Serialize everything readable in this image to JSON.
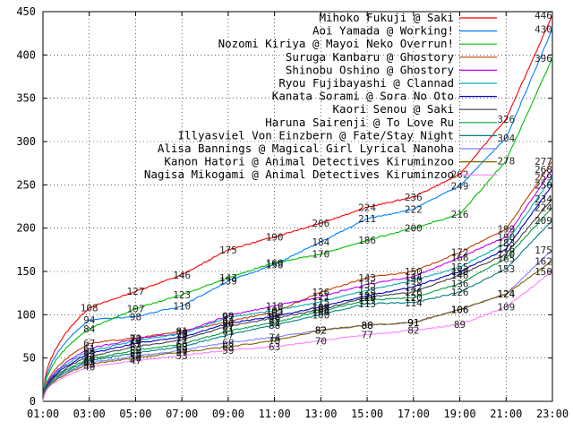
{
  "chart_data": {
    "type": "line",
    "title": "",
    "xlabel": "",
    "ylabel": "",
    "ylim": [
      0,
      450
    ],
    "y_ticks": [
      0,
      50,
      100,
      150,
      200,
      250,
      300,
      350,
      400,
      450
    ],
    "x_ticks": [
      "01:00",
      "03:00",
      "05:00",
      "07:00",
      "09:00",
      "11:00",
      "13:00",
      "15:00",
      "17:00",
      "19:00",
      "21:00",
      "23:00"
    ],
    "xlim": [
      "01:00",
      "23:00"
    ],
    "grid": true,
    "legend_position": "top-right",
    "x_hours": [
      1,
      3,
      5,
      7,
      9,
      11,
      13,
      15,
      17,
      19,
      21,
      23
    ],
    "series": [
      {
        "name": "Mihoko Fukuji @ Saki",
        "color": "#ff0000",
        "values": [
          0,
          108,
          127,
          146,
          175,
          190,
          206,
          224,
          236,
          262,
          326,
          446
        ]
      },
      {
        "name": "Aoi Yamada @ Working!",
        "color": "#0080ff",
        "values": [
          0,
          94,
          98,
          110,
          139,
          158,
          184,
          211,
          222,
          249,
          304,
          430
        ]
      },
      {
        "name": "Nozomi Kiriya @ Mayoi Neko Overrun!",
        "color": "#00c000",
        "values": [
          0,
          84,
          107,
          123,
          143,
          160,
          170,
          186,
          200,
          216,
          278,
          396
        ]
      },
      {
        "name": "Suruga Kanbaru @ Ghostory",
        "color": "#c04000",
        "values": [
          0,
          67,
          73,
          81,
          92,
          103,
          126,
          143,
          150,
          172,
          199,
          277
        ]
      },
      {
        "name": "Shinobu Oshino @ Ghostory",
        "color": "#c000ff",
        "values": [
          0,
          61,
          72,
          79,
          99,
          110,
          121,
          135,
          144,
          166,
          190,
          268
        ]
      },
      {
        "name": "Ryou Fujibayashi @ Clannad",
        "color": "#00b0b0",
        "values": [
          0,
          58,
          70,
          78,
          97,
          105,
          115,
          128,
          140,
          155,
          183,
          259
        ]
      },
      {
        "name": "Kanata Sorami @ Sora No Oto",
        "color": "#0000c0",
        "values": [
          0,
          55,
          67,
          74,
          90,
          98,
          109,
          122,
          132,
          150,
          176,
          250
        ]
      },
      {
        "name": "Kaori Senou @ Saki",
        "color": "#404040",
        "values": [
          0,
          52,
          63,
          71,
          87,
          96,
          106,
          120,
          126,
          146,
          170,
          234
        ]
      },
      {
        "name": "Haruna Sairenji @ To Love Ru",
        "color": "#00a040",
        "values": [
          0,
          49,
          59,
          66,
          81,
          91,
          104,
          117,
          120,
          136,
          165,
          224
        ]
      },
      {
        "name": "Illyasviel Von Einzbern @ Fate/Stay Night",
        "color": "#008080",
        "values": [
          0,
          47,
          56,
          63,
          77,
          88,
          100,
          113,
          114,
          126,
          153,
          209
        ]
      },
      {
        "name": "Alisa Bannings @ Magical Girl Lyrical Nanoha",
        "color": "#8080ff",
        "values": [
          0,
          45,
          52,
          59,
          68,
          74,
          82,
          88,
          91,
          106,
          124,
          175
        ]
      },
      {
        "name": "Kanon Hatori @ Animal Detectives Kiruminzoo",
        "color": "#806000",
        "values": [
          0,
          43,
          50,
          57,
          63,
          70,
          82,
          88,
          91,
          106,
          124,
          162
        ]
      },
      {
        "name": "Nagisa Mikogami @ Animal Detectives Kiruminzoo",
        "color": "#ff80ff",
        "values": [
          0,
          40,
          47,
          53,
          59,
          63,
          70,
          77,
          82,
          89,
          109,
          150
        ]
      }
    ]
  }
}
